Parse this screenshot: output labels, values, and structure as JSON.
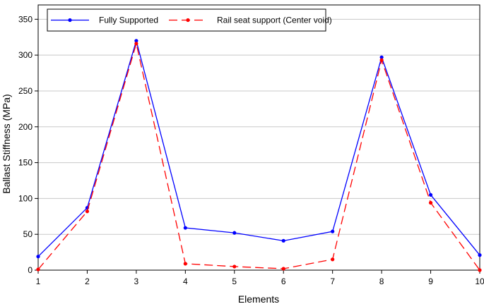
{
  "chart_data": {
    "type": "line",
    "title": "",
    "xlabel": "Elements",
    "ylabel": "Ballast Stiffness (MPa)",
    "x": [
      1,
      2,
      3,
      4,
      5,
      6,
      7,
      8,
      9,
      10
    ],
    "xlim": [
      1,
      10
    ],
    "ylim": [
      0,
      370
    ],
    "yticks": [
      0,
      50,
      100,
      150,
      200,
      250,
      300,
      350
    ],
    "grid": "horizontal",
    "legend_position": "top-left",
    "series": [
      {
        "name": "Fully Supported",
        "color": "#0000ff",
        "line_style": "solid",
        "values": [
          19,
          87,
          320,
          59,
          52,
          41,
          54,
          297,
          105,
          21
        ]
      },
      {
        "name": "Rail seat support (Center void)",
        "color": "#ff0000",
        "line_style": "dashed",
        "values": [
          1,
          82,
          316,
          9,
          5,
          2,
          15,
          293,
          94,
          0
        ]
      }
    ]
  }
}
